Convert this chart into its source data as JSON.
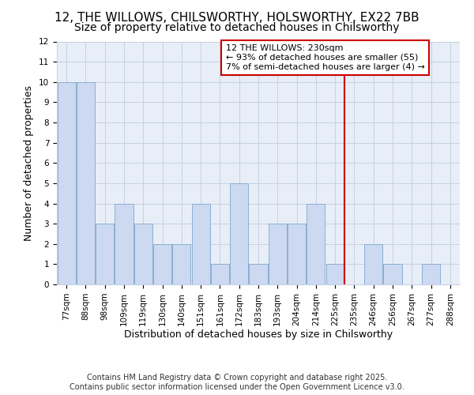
{
  "title_line1": "12, THE WILLOWS, CHILSWORTHY, HOLSWORTHY, EX22 7BB",
  "title_line2": "Size of property relative to detached houses in Chilsworthy",
  "xlabel": "Distribution of detached houses by size in Chilsworthy",
  "ylabel": "Number of detached properties",
  "categories": [
    "77sqm",
    "88sqm",
    "98sqm",
    "109sqm",
    "119sqm",
    "130sqm",
    "140sqm",
    "151sqm",
    "161sqm",
    "172sqm",
    "183sqm",
    "193sqm",
    "204sqm",
    "214sqm",
    "225sqm",
    "235sqm",
    "246sqm",
    "256sqm",
    "267sqm",
    "277sqm",
    "288sqm"
  ],
  "values": [
    10,
    10,
    3,
    4,
    3,
    2,
    2,
    4,
    1,
    5,
    1,
    3,
    3,
    4,
    1,
    0,
    2,
    1,
    0,
    1,
    0
  ],
  "bar_color": "#ccd9f0",
  "bar_edge_color": "#8aafd4",
  "grid_color": "#c8d0e0",
  "vline_x": 14.5,
  "vline_color": "#cc0000",
  "annotation_text": "12 THE WILLOWS: 230sqm\n← 93% of detached houses are smaller (55)\n7% of semi-detached houses are larger (4) →",
  "annotation_box_color": "#cc0000",
  "annotation_bg": "#ffffff",
  "footer_line1": "Contains HM Land Registry data © Crown copyright and database right 2025.",
  "footer_line2": "Contains public sector information licensed under the Open Government Licence v3.0.",
  "ylim": [
    0,
    12
  ],
  "yticks": [
    0,
    1,
    2,
    3,
    4,
    5,
    6,
    7,
    8,
    9,
    10,
    11,
    12
  ],
  "bg_color": "#e8eef8",
  "title_fontsize": 11,
  "subtitle_fontsize": 10,
  "label_fontsize": 9,
  "tick_fontsize": 7.5,
  "footer_fontsize": 7,
  "ann_fontsize": 8
}
